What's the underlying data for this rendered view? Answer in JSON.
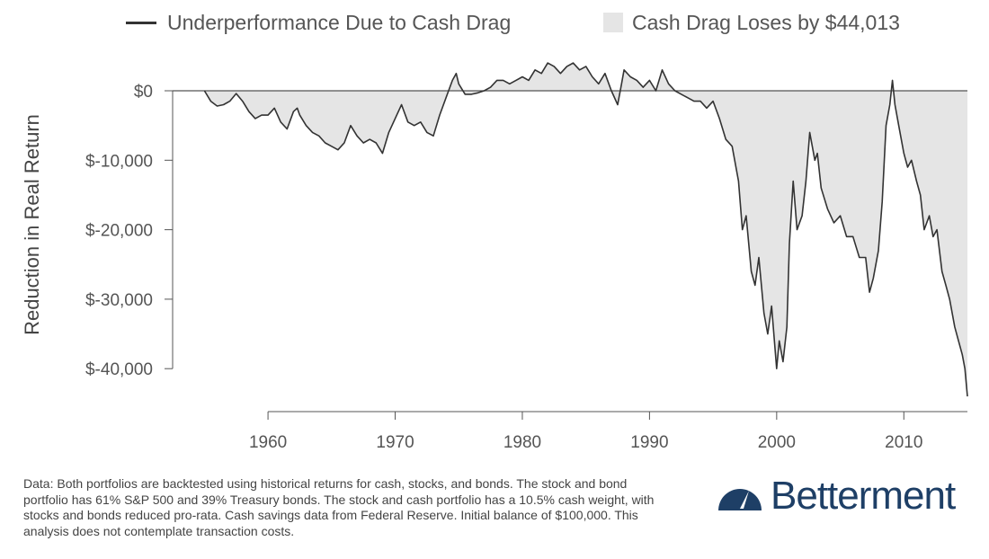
{
  "legend": {
    "line_label": "Underperformance Due to Cash Drag",
    "area_label": "Cash Drag Loses by $44,013"
  },
  "colors": {
    "line": "#333333",
    "area": "#e5e5e5",
    "zero_line": "#555555",
    "brand": "#1e3f66"
  },
  "chart_data": {
    "type": "area",
    "title": "",
    "ylabel": "Reduction in Real Return",
    "xlabel": "",
    "xlim": [
      1952.5,
      2015
    ],
    "ylim": [
      -44000,
      4500
    ],
    "x_ticks": [
      1960,
      1970,
      1980,
      1990,
      2000,
      2010
    ],
    "x_tick_labels": [
      "1960",
      "1970",
      "1980",
      "1990",
      "2000",
      "2010"
    ],
    "y_ticks": [
      0,
      -10000,
      -20000,
      -30000,
      -40000
    ],
    "y_tick_labels": [
      "$0",
      "$-10,000",
      "$-20,000",
      "$-30,000",
      "$-40,000"
    ],
    "grid": false,
    "legend_position": "top",
    "series": [
      {
        "name": "Underperformance Due to Cash Drag",
        "x": [
          1955.0,
          1955.5,
          1956.0,
          1956.5,
          1957.0,
          1957.5,
          1958.0,
          1958.5,
          1959.0,
          1959.5,
          1960.0,
          1960.5,
          1961.0,
          1961.5,
          1962.0,
          1962.3,
          1962.5,
          1963.0,
          1963.5,
          1964.0,
          1964.5,
          1965.0,
          1965.5,
          1966.0,
          1966.5,
          1967.0,
          1967.5,
          1968.0,
          1968.5,
          1969.0,
          1969.5,
          1970.0,
          1970.5,
          1971.0,
          1971.5,
          1972.0,
          1972.5,
          1973.0,
          1973.5,
          1974.0,
          1974.5,
          1974.8,
          1975.0,
          1975.5,
          1976.0,
          1976.5,
          1977.0,
          1977.5,
          1978.0,
          1978.5,
          1979.0,
          1979.5,
          1980.0,
          1980.5,
          1981.0,
          1981.5,
          1982.0,
          1982.5,
          1983.0,
          1983.5,
          1984.0,
          1984.5,
          1985.0,
          1985.5,
          1986.0,
          1986.5,
          1987.0,
          1987.5,
          1987.8,
          1988.0,
          1988.5,
          1989.0,
          1989.5,
          1990.0,
          1990.5,
          1991.0,
          1991.5,
          1992.0,
          1992.5,
          1993.0,
          1993.5,
          1994.0,
          1994.5,
          1995.0,
          1995.5,
          1996.0,
          1996.5,
          1997.0,
          1997.3,
          1997.6,
          1998.0,
          1998.3,
          1998.6,
          1999.0,
          1999.3,
          1999.6,
          2000.0,
          2000.2,
          2000.5,
          2000.8,
          2001.0,
          2001.3,
          2001.6,
          2002.0,
          2002.3,
          2002.6,
          2003.0,
          2003.2,
          2003.5,
          2004.0,
          2004.5,
          2005.0,
          2005.5,
          2006.0,
          2006.5,
          2007.0,
          2007.3,
          2007.6,
          2008.0,
          2008.3,
          2008.6,
          2008.9,
          2009.1,
          2009.3,
          2009.6,
          2010.0,
          2010.3,
          2010.6,
          2011.0,
          2011.3,
          2011.6,
          2012.0,
          2012.3,
          2012.6,
          2013.0,
          2013.3,
          2013.6,
          2014.0,
          2014.3,
          2014.6,
          2014.8,
          2015.0
        ],
        "values": [
          0,
          -1500,
          -2200,
          -2000,
          -1500,
          -400,
          -1500,
          -3000,
          -4000,
          -3500,
          -3500,
          -2500,
          -4500,
          -5500,
          -3000,
          -2500,
          -3500,
          -5000,
          -6000,
          -6500,
          -7500,
          -8000,
          -8500,
          -7500,
          -5000,
          -6500,
          -7500,
          -7000,
          -7500,
          -9000,
          -6000,
          -4000,
          -2000,
          -4500,
          -5000,
          -4500,
          -6000,
          -6500,
          -3500,
          -1000,
          1500,
          2500,
          1000,
          -500,
          -500,
          -300,
          0,
          500,
          1500,
          1500,
          1000,
          1500,
          2000,
          1500,
          3000,
          2500,
          4000,
          3500,
          2500,
          3500,
          4000,
          3000,
          3500,
          2000,
          1000,
          2500,
          0,
          -2000,
          1000,
          3000,
          2000,
          1500,
          500,
          1500,
          0,
          3000,
          1000,
          0,
          -500,
          -1000,
          -1500,
          -1500,
          -2500,
          -1500,
          -4000,
          -7000,
          -8000,
          -13000,
          -20000,
          -18000,
          -26000,
          -28000,
          -24000,
          -32000,
          -35000,
          -31000,
          -40000,
          -36000,
          -39000,
          -34000,
          -22000,
          -13000,
          -20000,
          -18000,
          -13000,
          -6000,
          -10000,
          -9000,
          -14000,
          -17000,
          -19000,
          -18000,
          -21000,
          -21000,
          -24000,
          -24000,
          -29000,
          -27000,
          -23000,
          -16000,
          -5000,
          -2000,
          1500,
          -2000,
          -5000,
          -9000,
          -11000,
          -10000,
          -13000,
          -15000,
          -20000,
          -18000,
          -21000,
          -20000,
          -26000,
          -28000,
          -30000,
          -34000,
          -36000,
          -38000,
          -40000,
          -44000
        ]
      }
    ]
  },
  "footnote": "Data: Both portfolios are backtested using historical returns for cash, stocks, and bonds. The stock and bond portfolio has 61% S&P 500 and 39% Treasury bonds. The stock and cash portfolio has a 10.5% cash weight, with stocks and bonds reduced pro-rata. Cash savings data from Federal Reserve. Initial balance of $100,000. This analysis does not contemplate transaction costs.",
  "logo": {
    "text": "Betterment",
    "icon": "gauge-icon"
  }
}
